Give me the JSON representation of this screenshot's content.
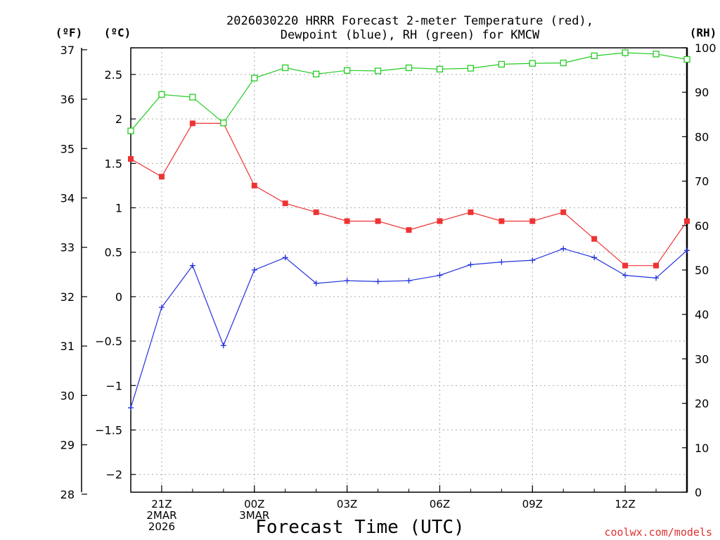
{
  "chart_data": {
    "type": "line",
    "title_line1": "2026030220 HRRR Forecast 2-meter Temperature (red),",
    "title_line2": "Dewpoint (blue), RH (green) for KMCW",
    "xlabel": "Forecast Time (UTC)",
    "credit": "coolwx.com/models",
    "unit_left_f": "(ºF)",
    "unit_left_c": "(ºC)",
    "unit_right": "(RH)",
    "x_hours": [
      20,
      21,
      22,
      23,
      24,
      25,
      26,
      27,
      28,
      29,
      30,
      31,
      32,
      33,
      34,
      35,
      36,
      37,
      38
    ],
    "x_ticks": [
      {
        "hour": 21,
        "lines": [
          "21Z",
          "2MAR",
          "2026"
        ]
      },
      {
        "hour": 24,
        "lines": [
          "00Z",
          "3MAR"
        ]
      },
      {
        "hour": 27,
        "lines": [
          "03Z"
        ]
      },
      {
        "hour": 30,
        "lines": [
          "06Z"
        ]
      },
      {
        "hour": 33,
        "lines": [
          "09Z"
        ]
      },
      {
        "hour": 36,
        "lines": [
          "12Z"
        ]
      }
    ],
    "ylim_c": [
      -2.2,
      2.8
    ],
    "ylim_f": [
      28.04,
      37.04
    ],
    "ylim_rh": [
      0,
      100
    ],
    "yticks_c": [
      "-2",
      "-1.5",
      "-1",
      "-0.5",
      "0",
      "0.5",
      "1",
      "1.5",
      "2",
      "2.5"
    ],
    "yticks_f": [
      "28",
      "29",
      "30",
      "31",
      "32",
      "33",
      "34",
      "35",
      "36",
      "37"
    ],
    "yticks_rh": [
      "0",
      "10",
      "20",
      "30",
      "40",
      "50",
      "60",
      "70",
      "80",
      "90",
      "100"
    ],
    "series": [
      {
        "name": "Temperature",
        "unit": "C",
        "color": "#ee3333",
        "marker": "square-filled",
        "values": [
          1.55,
          1.35,
          1.95,
          1.95,
          1.25,
          1.05,
          0.95,
          0.85,
          0.85,
          0.75,
          0.85,
          0.95,
          0.85,
          0.85,
          0.95,
          0.65,
          0.35,
          0.35,
          0.85
        ]
      },
      {
        "name": "Dewpoint",
        "unit": "C",
        "color": "#2233dd",
        "marker": "plus",
        "values": [
          -1.25,
          -0.12,
          0.35,
          -0.55,
          0.3,
          0.44,
          0.15,
          0.18,
          0.17,
          0.18,
          0.24,
          0.36,
          0.39,
          0.41,
          0.54,
          0.44,
          0.24,
          0.21,
          0.52
        ]
      },
      {
        "name": "RH",
        "unit": "%",
        "color": "#22cc22",
        "marker": "square-open",
        "values": [
          81.3,
          89.5,
          88.9,
          83.1,
          93.2,
          95.5,
          94.1,
          94.9,
          94.8,
          95.5,
          95.2,
          95.4,
          96.3,
          96.5,
          96.6,
          98.2,
          98.9,
          98.6,
          97.4
        ]
      }
    ],
    "grid": true,
    "grid_style": "dotted"
  }
}
